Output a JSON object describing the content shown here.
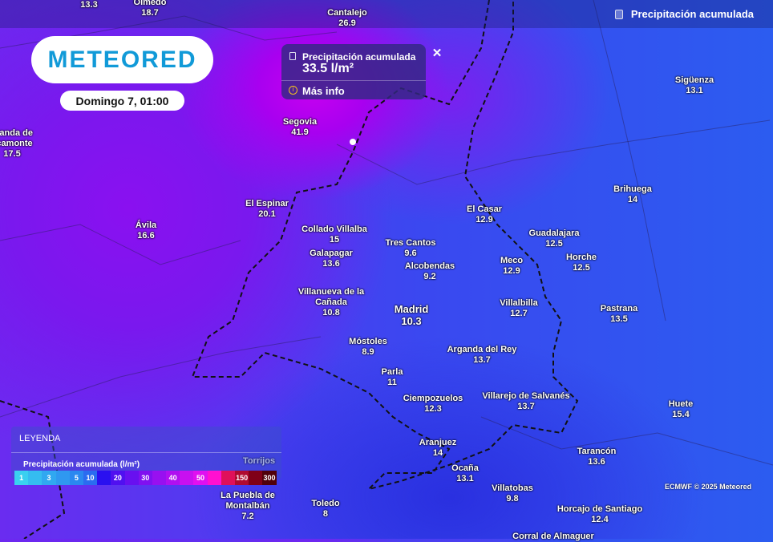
{
  "header": {
    "layer_title": "Precipitación acumulada",
    "layer_icon": "gauge-icon"
  },
  "logo": {
    "text": "METEORED"
  },
  "date": "Domingo 7, 01:00",
  "popup": {
    "title": "Precipitación acumulada",
    "value": "33.5 l/m²",
    "more": "Más info",
    "close": "✕",
    "info_icon": "ⓘ"
  },
  "legend": {
    "heading": "LEYENDA",
    "subtitle": "Precipitación acumulada (l/m²)",
    "scale": [
      {
        "l": "1",
        "c": "#3ad0f0"
      },
      {
        "l": "",
        "c": "#35bcf0"
      },
      {
        "l": "3",
        "c": "#30a8f0"
      },
      {
        "l": "",
        "c": "#2f98f0"
      },
      {
        "l": "5",
        "c": "#2a88f0"
      },
      {
        "l": "10",
        "c": "#2a6cf0"
      },
      {
        "l": "",
        "c": "#2a10f0"
      },
      {
        "l": "20",
        "c": "#5010f0"
      },
      {
        "l": "",
        "c": "#6810f0"
      },
      {
        "l": "30",
        "c": "#8010f0"
      },
      {
        "l": "",
        "c": "#9810f0"
      },
      {
        "l": "40",
        "c": "#b010f0"
      },
      {
        "l": "",
        "c": "#c810f0"
      },
      {
        "l": "50",
        "c": "#e010f0"
      },
      {
        "l": "",
        "c": "#ff10d0"
      },
      {
        "l": "",
        "c": "#e0105a"
      },
      {
        "l": "150",
        "c": "#b00a30"
      },
      {
        "l": "",
        "c": "#800018"
      },
      {
        "l": "300",
        "c": "#50000a"
      }
    ]
  },
  "credit": "ECMWF © 2025 Meteored",
  "cities": [
    {
      "name": "",
      "value": "13.3"
    },
    {
      "name": "Olmedo",
      "value": "18.7"
    },
    {
      "name": "Cantalejo",
      "value": "26.9"
    },
    {
      "name": "Sigüenza",
      "value": "13.1"
    },
    {
      "name": "Segovia",
      "value": "41.9"
    },
    {
      "name": "aranda de\nacamonte",
      "value": "17.5"
    },
    {
      "name": "Brihuega",
      "value": "14"
    },
    {
      "name": "El Espinar",
      "value": "20.1"
    },
    {
      "name": "El Casar",
      "value": "12.9"
    },
    {
      "name": "Ávila",
      "value": "16.6"
    },
    {
      "name": "Collado Villalba",
      "value": "15"
    },
    {
      "name": "Guadalajara",
      "value": "12.5"
    },
    {
      "name": "Tres Cantos",
      "value": "9.6"
    },
    {
      "name": "Galapagar",
      "value": "13.6"
    },
    {
      "name": "Horche",
      "value": "12.5"
    },
    {
      "name": "Meco",
      "value": "12.9"
    },
    {
      "name": "Alcobendas",
      "value": "9.2"
    },
    {
      "name": "Villanueva de la\nCañada",
      "value": "10.8"
    },
    {
      "name": "Madrid",
      "value": "10.3"
    },
    {
      "name": "Villalbilla",
      "value": "12.7"
    },
    {
      "name": "Pastrana",
      "value": "13.5"
    },
    {
      "name": "Móstoles",
      "value": "8.9"
    },
    {
      "name": "Arganda del Rey",
      "value": "13.7"
    },
    {
      "name": "Parla",
      "value": "11"
    },
    {
      "name": "Villarejo de Salvanés",
      "value": "13.7"
    },
    {
      "name": "Huete",
      "value": "15.4"
    },
    {
      "name": "Ciempozuelos",
      "value": "12.3"
    },
    {
      "name": "Aranjuez",
      "value": "14"
    },
    {
      "name": "Tarancón",
      "value": "13.6"
    },
    {
      "name": "Ocaña",
      "value": "13.1"
    },
    {
      "name": "Villatobas",
      "value": "9.8"
    },
    {
      "name": "Toledo",
      "value": "8"
    },
    {
      "name": "Horcajo de Santiago",
      "value": "12.4"
    },
    {
      "name": "La Puebla de\nMontalbán",
      "value": "7.2"
    },
    {
      "name": "Torrijos",
      "value": ""
    },
    {
      "name": "Corral de Almaguer",
      "value": ""
    }
  ]
}
